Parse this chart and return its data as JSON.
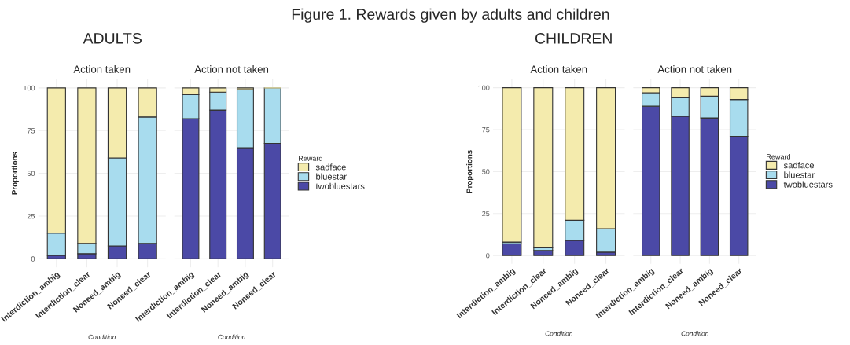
{
  "chart_data": [
    {
      "type": "bar",
      "stacked": true,
      "title": "Action taken",
      "subtitle": "ADULTS",
      "annotations": [
        "Figure 1. Rewards given by adults and children"
      ],
      "xlabel": "Condition",
      "ylabel": "Proportions",
      "categories": [
        "Interdiction_ambig",
        "Interdiction_clear",
        "Noneed_ambig",
        "Noneed_clear"
      ],
      "ylim": [
        -5,
        105
      ],
      "yticks": [
        0,
        25,
        50,
        75,
        100
      ],
      "grid": true,
      "series": [
        {
          "color": "#4b49a6",
          "values": [
            2,
            3,
            7.5,
            9
          ]
        },
        {
          "color": "#a8dcee",
          "values": [
            13,
            6,
            51.5,
            74
          ]
        },
        {
          "color": "#f4ebad",
          "values": [
            85,
            91,
            41,
            17
          ]
        }
      ]
    },
    {
      "type": "bar",
      "stacked": true,
      "title": "Action not taken",
      "xlabel": "Condition",
      "legend_title": "Reward",
      "categories": [
        "Interdiction_ambig",
        "Interdiction_clear",
        "Noneed_ambig",
        "Noneed_clear"
      ],
      "ylim": [
        -5,
        105
      ],
      "yticks": [
        0,
        25,
        50,
        75,
        100
      ],
      "grid": true,
      "legend": "right",
      "tick_labels": "x",
      "series": [
        {
          "name": "twobluestars",
          "color": "#4b49a6",
          "values": [
            82,
            87,
            65,
            67.5
          ]
        },
        {
          "name": "bluestar",
          "color": "#a8dcee",
          "values": [
            14,
            10.5,
            34,
            32.5
          ]
        },
        {
          "name": "sadface",
          "color": "#f4ebad",
          "values": [
            4,
            2.5,
            1,
            0
          ]
        }
      ]
    },
    {
      "type": "bar",
      "stacked": true,
      "title": "Action taken",
      "subtitle": "CHILDREN",
      "xlabel": "Condition",
      "ylabel": "Proportions",
      "categories": [
        "Interdiction_ambig",
        "Interdiction_clear",
        "Noneed_ambig",
        "Noneed_clear"
      ],
      "ylim": [
        -5,
        105
      ],
      "yticks": [
        0,
        25,
        50,
        75,
        100
      ],
      "grid": true,
      "series": [
        {
          "color": "#4b49a6",
          "values": [
            7,
            3,
            9,
            2
          ]
        },
        {
          "color": "#a8dcee",
          "values": [
            1,
            2,
            12,
            14
          ]
        },
        {
          "color": "#f4ebad",
          "values": [
            92,
            95,
            79,
            84
          ]
        }
      ]
    },
    {
      "type": "bar",
      "stacked": true,
      "title": "Action not taken",
      "xlabel": "Condition",
      "legend_title": "Reward",
      "categories": [
        "Interdiction_ambig",
        "Interdiction_clear",
        "Noneed_ambig",
        "Noneed_clear"
      ],
      "ylim": [
        -5,
        105
      ],
      "yticks": [
        0,
        25,
        50,
        75,
        100
      ],
      "grid": true,
      "legend": "right",
      "tick_labels": "x",
      "series": [
        {
          "name": "twobluestars",
          "color": "#4b49a6",
          "values": [
            89,
            83,
            82,
            71
          ]
        },
        {
          "name": "bluestar",
          "color": "#a8dcee",
          "values": [
            8,
            11,
            13,
            22
          ]
        },
        {
          "name": "sadface",
          "color": "#f4ebad",
          "values": [
            3,
            6,
            5,
            7
          ]
        }
      ]
    }
  ]
}
